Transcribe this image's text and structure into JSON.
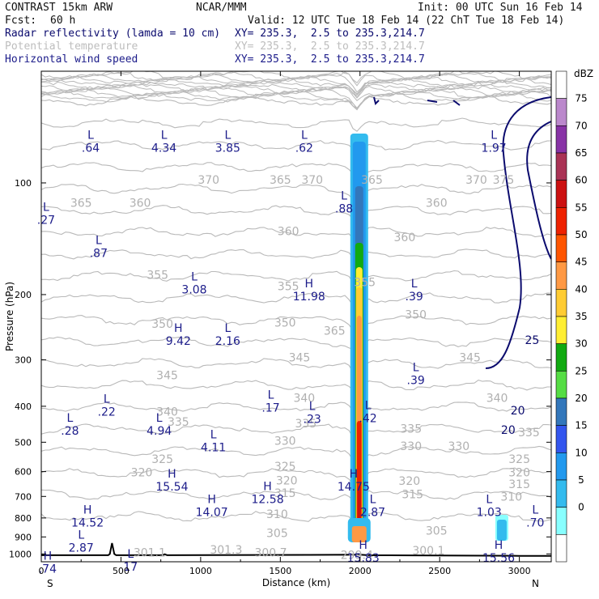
{
  "header": {
    "model": "CONTRAST 15km ARW",
    "org": "NCAR/MMM",
    "init": "Init: 00 UTC Sun 16 Feb 14",
    "fcst_label": "Fcst:",
    "fcst_value": "60 h",
    "valid": "Valid: 12 UTC Tue 18 Feb 14 (22 ChT Tue 18 Feb 14)"
  },
  "fields": [
    {
      "name": "Radar reflectivity (lamda = 10 cm)",
      "xy": "XY= 235.3,  2.5 to 235.3,214.7",
      "color": "#1c1c8a"
    },
    {
      "name": "Potential temperature",
      "xy": "XY= 235.3,  2.5 to 235.3,214.7",
      "color": "#c0c0c0"
    },
    {
      "name": "Horizontal wind speed",
      "xy": "XY= 235.3,  2.5 to 235.3,214.7",
      "color": "#1c1c8a"
    }
  ],
  "chart_data": {
    "type": "heatmap",
    "xlabel": "Distance (km)",
    "ylabel": "Pressure (hPa)",
    "x_range": [
      0,
      3200
    ],
    "y_range": [
      1050,
      50
    ],
    "y_scale": "log",
    "x_ticks": [
      "0",
      "500",
      "1000",
      "1500",
      "2000",
      "2500",
      "3000"
    ],
    "y_ticks": [
      "100",
      "200",
      "300",
      "400",
      "500",
      "600",
      "700",
      "800",
      "900",
      "1000"
    ],
    "x_end_labels": {
      "left": "S",
      "right": "N"
    },
    "colorbar": {
      "unit": "dBZ",
      "levels": [
        "75",
        "70",
        "65",
        "60",
        "55",
        "50",
        "45",
        "40",
        "35",
        "30",
        "25",
        "20",
        "15",
        "10",
        "5",
        "0"
      ],
      "colors": [
        "#ffffff",
        "#bb88cc",
        "#8833a6",
        "#aa3355",
        "#cc1111",
        "#ee2200",
        "#ff5500",
        "#ff9944",
        "#ffcc33",
        "#ffee33",
        "#11aa11",
        "#55dd44",
        "#3377bb",
        "#3355ee",
        "#2299ee",
        "#33bbee",
        "#88ffff",
        "#ffffff"
      ]
    },
    "theta_labels": [
      {
        "x": 250,
        "p": 113,
        "t": "365"
      },
      {
        "x": 620,
        "p": 113,
        "t": "360"
      },
      {
        "x": 1050,
        "p": 98,
        "t": "370"
      },
      {
        "x": 1500,
        "p": 98,
        "t": "365"
      },
      {
        "x": 1700,
        "p": 98,
        "t": "370"
      },
      {
        "x": 2075,
        "p": 98,
        "t": "365"
      },
      {
        "x": 2480,
        "p": 113,
        "t": "360"
      },
      {
        "x": 2730,
        "p": 98,
        "t": "370"
      },
      {
        "x": 2900,
        "p": 98,
        "t": "375"
      },
      {
        "x": 1840,
        "p": 250,
        "t": "365"
      },
      {
        "x": 1550,
        "p": 135,
        "t": "360"
      },
      {
        "x": 2280,
        "p": 140,
        "t": "360"
      },
      {
        "x": 730,
        "p": 177,
        "t": "355"
      },
      {
        "x": 1550,
        "p": 190,
        "t": "355"
      },
      {
        "x": 2030,
        "p": 185,
        "t": "355"
      },
      {
        "x": 2350,
        "p": 226,
        "t": "350"
      },
      {
        "x": 760,
        "p": 240,
        "t": "350"
      },
      {
        "x": 1530,
        "p": 238,
        "t": "350"
      },
      {
        "x": 1620,
        "p": 295,
        "t": "345"
      },
      {
        "x": 2690,
        "p": 295,
        "t": "345"
      },
      {
        "x": 790,
        "p": 330,
        "t": "345"
      },
      {
        "x": 1650,
        "p": 380,
        "t": "340"
      },
      {
        "x": 790,
        "p": 413,
        "t": "340"
      },
      {
        "x": 2860,
        "p": 380,
        "t": "340"
      },
      {
        "x": 860,
        "p": 440,
        "t": "335"
      },
      {
        "x": 1660,
        "p": 445,
        "t": "335"
      },
      {
        "x": 2320,
        "p": 460,
        "t": "335"
      },
      {
        "x": 3060,
        "p": 470,
        "t": "335"
      },
      {
        "x": 1530,
        "p": 495,
        "t": "330"
      },
      {
        "x": 2320,
        "p": 512,
        "t": "330"
      },
      {
        "x": 2620,
        "p": 512,
        "t": "330"
      },
      {
        "x": 760,
        "p": 555,
        "t": "325"
      },
      {
        "x": 1530,
        "p": 580,
        "t": "325"
      },
      {
        "x": 3000,
        "p": 555,
        "t": "325"
      },
      {
        "x": 630,
        "p": 603,
        "t": "320"
      },
      {
        "x": 1540,
        "p": 633,
        "t": "320"
      },
      {
        "x": 2310,
        "p": 635,
        "t": "320"
      },
      {
        "x": 3000,
        "p": 603,
        "t": "320"
      },
      {
        "x": 1530,
        "p": 685,
        "t": "315"
      },
      {
        "x": 2330,
        "p": 690,
        "t": "315"
      },
      {
        "x": 3000,
        "p": 648,
        "t": "315"
      },
      {
        "x": 1480,
        "p": 780,
        "t": "310"
      },
      {
        "x": 2950,
        "p": 700,
        "t": "310"
      },
      {
        "x": 1480,
        "p": 878,
        "t": "305"
      },
      {
        "x": 2480,
        "p": 865,
        "t": "305"
      },
      {
        "x": 680,
        "p": 990,
        "t": "301.1"
      },
      {
        "x": 1160,
        "p": 975,
        "t": "301.3"
      },
      {
        "x": 1440,
        "p": 990,
        "t": "300.7"
      },
      {
        "x": 2430,
        "p": 978,
        "t": "300.1"
      },
      {
        "x": 1980,
        "p": 1005,
        "t": "299.4"
      }
    ],
    "wind_contours": [
      {
        "level": "25",
        "x": 3080,
        "p": 265
      },
      {
        "level": "20",
        "x": 2990,
        "p": 410
      },
      {
        "level": "20",
        "x": 2930,
        "p": 463
      }
    ],
    "wind_extrema": [
      {
        "kind": "L",
        "v": ".64",
        "x": 310,
        "p": 76
      },
      {
        "kind": "L",
        "v": "4.34",
        "x": 770,
        "p": 76
      },
      {
        "kind": "L",
        "v": "3.85",
        "x": 1170,
        "p": 76
      },
      {
        "kind": "L",
        "v": ".62",
        "x": 1650,
        "p": 76
      },
      {
        "kind": "L",
        "v": "1.97",
        "x": 2840,
        "p": 76
      },
      {
        "kind": "L",
        "v": ".88",
        "x": 1900,
        "p": 111
      },
      {
        "kind": "L",
        "v": ".27",
        "x": 30,
        "p": 119
      },
      {
        "kind": "L",
        "v": ".87",
        "x": 360,
        "p": 146
      },
      {
        "kind": "L",
        "v": "3.08",
        "x": 960,
        "p": 183
      },
      {
        "kind": "H",
        "v": "11.98",
        "x": 1680,
        "p": 191
      },
      {
        "kind": "L",
        "v": ".39",
        "x": 2340,
        "p": 191
      },
      {
        "kind": "H",
        "v": "9.42",
        "x": 860,
        "p": 252
      },
      {
        "kind": "L",
        "v": "2.16",
        "x": 1170,
        "p": 252
      },
      {
        "kind": "L",
        "v": ".39",
        "x": 2350,
        "p": 322
      },
      {
        "kind": "L",
        "v": ".22",
        "x": 410,
        "p": 391
      },
      {
        "kind": "L",
        "v": ".17",
        "x": 1440,
        "p": 382
      },
      {
        "kind": "L",
        "v": ".23",
        "x": 1700,
        "p": 409
      },
      {
        "kind": "L",
        "v": ".42",
        "x": 2050,
        "p": 407
      },
      {
        "kind": "L",
        "v": ".28",
        "x": 180,
        "p": 440
      },
      {
        "kind": "L",
        "v": "4.94",
        "x": 740,
        "p": 440
      },
      {
        "kind": "L",
        "v": "4.11",
        "x": 1080,
        "p": 488
      },
      {
        "kind": "H",
        "v": "15.54",
        "x": 820,
        "p": 622
      },
      {
        "kind": "H",
        "v": "14.75",
        "x": 1960,
        "p": 622
      },
      {
        "kind": "H",
        "v": "12.58",
        "x": 1420,
        "p": 673
      },
      {
        "kind": "H",
        "v": "14.07",
        "x": 1070,
        "p": 729
      },
      {
        "kind": "L",
        "v": "2.87",
        "x": 2080,
        "p": 729
      },
      {
        "kind": "L",
        "v": "1.03",
        "x": 2810,
        "p": 729
      },
      {
        "kind": "H",
        "v": "14.52",
        "x": 290,
        "p": 778
      },
      {
        "kind": "L",
        "v": ".70",
        "x": 3100,
        "p": 778
      },
      {
        "kind": "L",
        "v": "2.87",
        "x": 250,
        "p": 911
      },
      {
        "kind": "H",
        "v": "15.83",
        "x": 2020,
        "p": 968
      },
      {
        "kind": "H",
        "v": "15.56",
        "x": 2870,
        "p": 968
      },
      {
        "kind": "L",
        "v": "17",
        "x": 560,
        "p": 1023
      },
      {
        "kind": "H",
        "v": ".74",
        "x": 40,
        "p": 1036
      }
    ]
  }
}
